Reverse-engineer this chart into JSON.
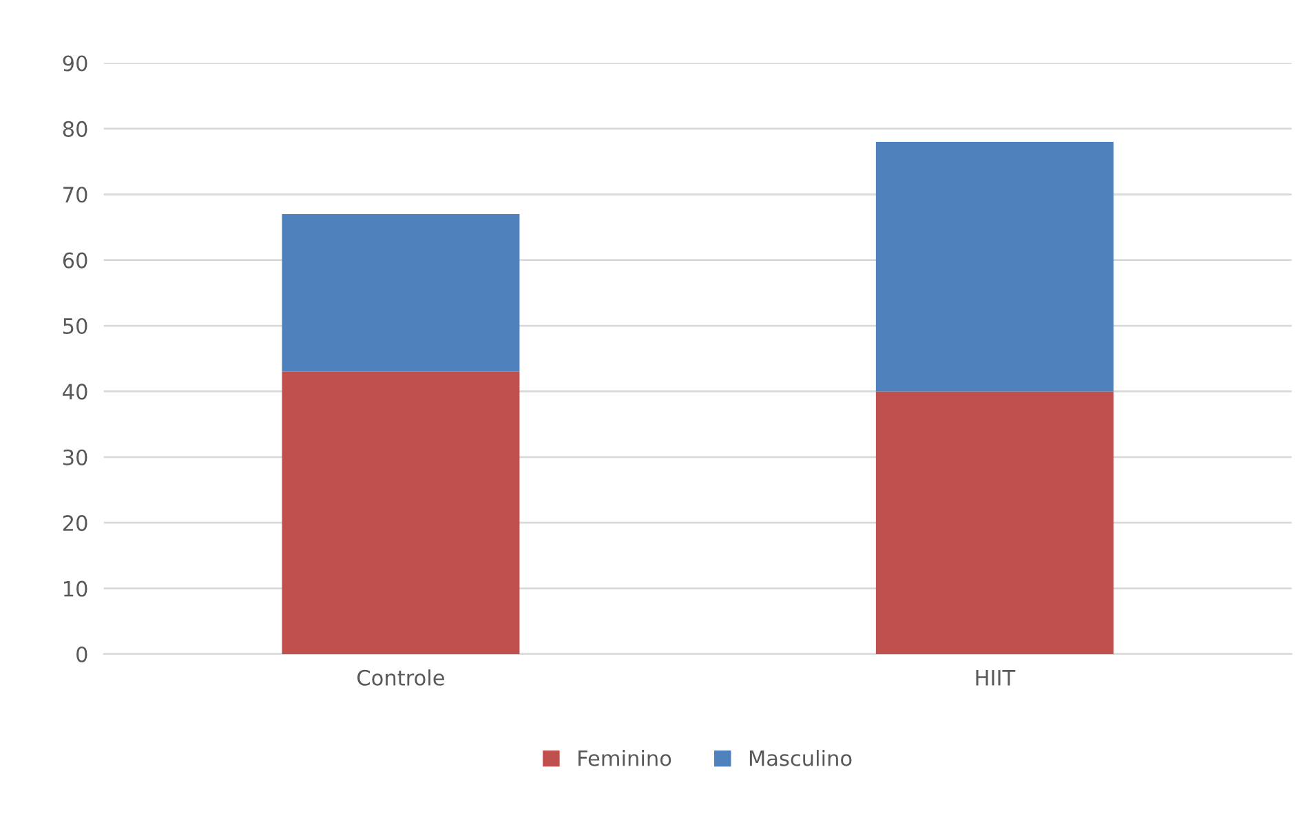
{
  "chart_data": {
    "type": "bar",
    "stacked": true,
    "categories": [
      "Controle",
      "HIIT"
    ],
    "series": [
      {
        "name": "Feminino",
        "color": "#c0504d",
        "values": [
          43,
          40
        ]
      },
      {
        "name": "Masculino",
        "color": "#4f81bd",
        "values": [
          24,
          38
        ]
      }
    ],
    "ylim": [
      0,
      90
    ],
    "yticks": [
      0,
      10,
      20,
      30,
      40,
      50,
      60,
      70,
      80,
      90
    ],
    "grid": "y",
    "legend": "bottom"
  }
}
